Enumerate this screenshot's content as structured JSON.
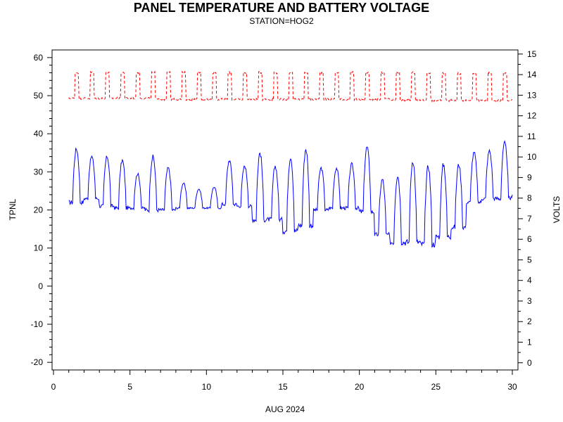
{
  "chart_data": {
    "type": "line",
    "title": "PANEL TEMPERATURE AND BATTERY VOLTAGE",
    "subtitle": "STATION=HOG2",
    "xlabel": "AUG 2024",
    "ylabel_left": "TPNL",
    "ylabel_right": "VOLTS",
    "xlim": [
      0,
      30
    ],
    "ylim_left": [
      -22,
      62
    ],
    "ylim_right": [
      -0.35,
      15.2
    ],
    "x_ticks": [
      0,
      5,
      10,
      15,
      20,
      25,
      30
    ],
    "y_left_ticks": [
      -20,
      -10,
      0,
      10,
      20,
      30,
      40,
      50,
      60
    ],
    "y_right_ticks": [
      0,
      1,
      2,
      3,
      4,
      5,
      6,
      7,
      8,
      9,
      10,
      11,
      12,
      13,
      14,
      15
    ],
    "grid": false,
    "series": [
      {
        "axis": "left",
        "color": "#0000ff",
        "style": "solid",
        "daily": [
          {
            "day": 1.0,
            "min": 22.0,
            "max": 36.0
          },
          {
            "day": 2.0,
            "min": 23.0,
            "max": 34.0
          },
          {
            "day": 3.0,
            "min": 21.0,
            "max": 34.0
          },
          {
            "day": 4.0,
            "min": 20.5,
            "max": 33.0
          },
          {
            "day": 5.0,
            "min": 20.5,
            "max": 29.5
          },
          {
            "day": 6.0,
            "min": 20.0,
            "max": 34.0
          },
          {
            "day": 7.0,
            "min": 20.0,
            "max": 31.0
          },
          {
            "day": 8.0,
            "min": 20.5,
            "max": 27.0
          },
          {
            "day": 9.0,
            "min": 20.5,
            "max": 25.5
          },
          {
            "day": 10.0,
            "min": 20.5,
            "max": 26.0
          },
          {
            "day": 11.0,
            "min": 21.5,
            "max": 33.0
          },
          {
            "day": 12.0,
            "min": 21.0,
            "max": 31.5
          },
          {
            "day": 13.0,
            "min": 17.5,
            "max": 35.0
          },
          {
            "day": 14.0,
            "min": 17.5,
            "max": 31.5
          },
          {
            "day": 15.0,
            "min": 14.5,
            "max": 34.0
          },
          {
            "day": 16.0,
            "min": 16.0,
            "max": 36.0
          },
          {
            "day": 17.0,
            "min": 20.0,
            "max": 31.0
          },
          {
            "day": 18.0,
            "min": 20.5,
            "max": 31.0
          },
          {
            "day": 19.0,
            "min": 20.5,
            "max": 32.0
          },
          {
            "day": 20.0,
            "min": 19.5,
            "max": 36.5
          },
          {
            "day": 21.0,
            "min": 13.5,
            "max": 28.0
          },
          {
            "day": 22.0,
            "min": 11.5,
            "max": 29.0
          },
          {
            "day": 23.0,
            "min": 11.5,
            "max": 33.0
          },
          {
            "day": 24.0,
            "min": 11.0,
            "max": 31.5
          },
          {
            "day": 25.0,
            "min": 13.0,
            "max": 32.0
          },
          {
            "day": 26.0,
            "min": 15.5,
            "max": 32.0
          },
          {
            "day": 27.0,
            "min": 22.0,
            "max": 35.0
          },
          {
            "day": 28.0,
            "min": 23.0,
            "max": 35.5
          },
          {
            "day": 29.0,
            "min": 23.0,
            "max": 37.5
          },
          {
            "day": 30.0,
            "min": 24.0,
            "max": 24.0
          }
        ]
      },
      {
        "axis": "right",
        "color": "#ff0000",
        "style": "dashed",
        "daily": [
          {
            "day": 1.0,
            "min": 12.85,
            "max": 14.1
          },
          {
            "day": 2.0,
            "min": 12.85,
            "max": 14.1
          },
          {
            "day": 3.0,
            "min": 12.85,
            "max": 14.1
          },
          {
            "day": 4.0,
            "min": 12.85,
            "max": 14.1
          },
          {
            "day": 5.0,
            "min": 12.85,
            "max": 14.1
          },
          {
            "day": 6.0,
            "min": 12.85,
            "max": 14.1
          },
          {
            "day": 7.0,
            "min": 12.8,
            "max": 14.1
          },
          {
            "day": 8.0,
            "min": 12.8,
            "max": 14.1
          },
          {
            "day": 9.0,
            "min": 12.8,
            "max": 14.1
          },
          {
            "day": 10.0,
            "min": 12.8,
            "max": 14.1
          },
          {
            "day": 11.0,
            "min": 12.8,
            "max": 14.1
          },
          {
            "day": 12.0,
            "min": 12.8,
            "max": 14.1
          },
          {
            "day": 13.0,
            "min": 12.8,
            "max": 14.1
          },
          {
            "day": 14.0,
            "min": 12.8,
            "max": 14.1
          },
          {
            "day": 15.0,
            "min": 12.8,
            "max": 14.1
          },
          {
            "day": 16.0,
            "min": 12.8,
            "max": 14.1
          },
          {
            "day": 17.0,
            "min": 12.8,
            "max": 14.1
          },
          {
            "day": 18.0,
            "min": 12.8,
            "max": 14.1
          },
          {
            "day": 19.0,
            "min": 12.8,
            "max": 14.1
          },
          {
            "day": 20.0,
            "min": 12.8,
            "max": 14.1
          },
          {
            "day": 21.0,
            "min": 12.8,
            "max": 14.1
          },
          {
            "day": 22.0,
            "min": 12.75,
            "max": 14.1
          },
          {
            "day": 23.0,
            "min": 12.75,
            "max": 14.1
          },
          {
            "day": 24.0,
            "min": 12.75,
            "max": 14.1
          },
          {
            "day": 25.0,
            "min": 12.75,
            "max": 14.05
          },
          {
            "day": 26.0,
            "min": 12.75,
            "max": 14.05
          },
          {
            "day": 27.0,
            "min": 12.75,
            "max": 14.05
          },
          {
            "day": 28.0,
            "min": 12.75,
            "max": 14.1
          },
          {
            "day": 29.0,
            "min": 12.75,
            "max": 14.05
          },
          {
            "day": 30.0,
            "min": 12.8,
            "max": 12.9
          }
        ]
      }
    ]
  }
}
